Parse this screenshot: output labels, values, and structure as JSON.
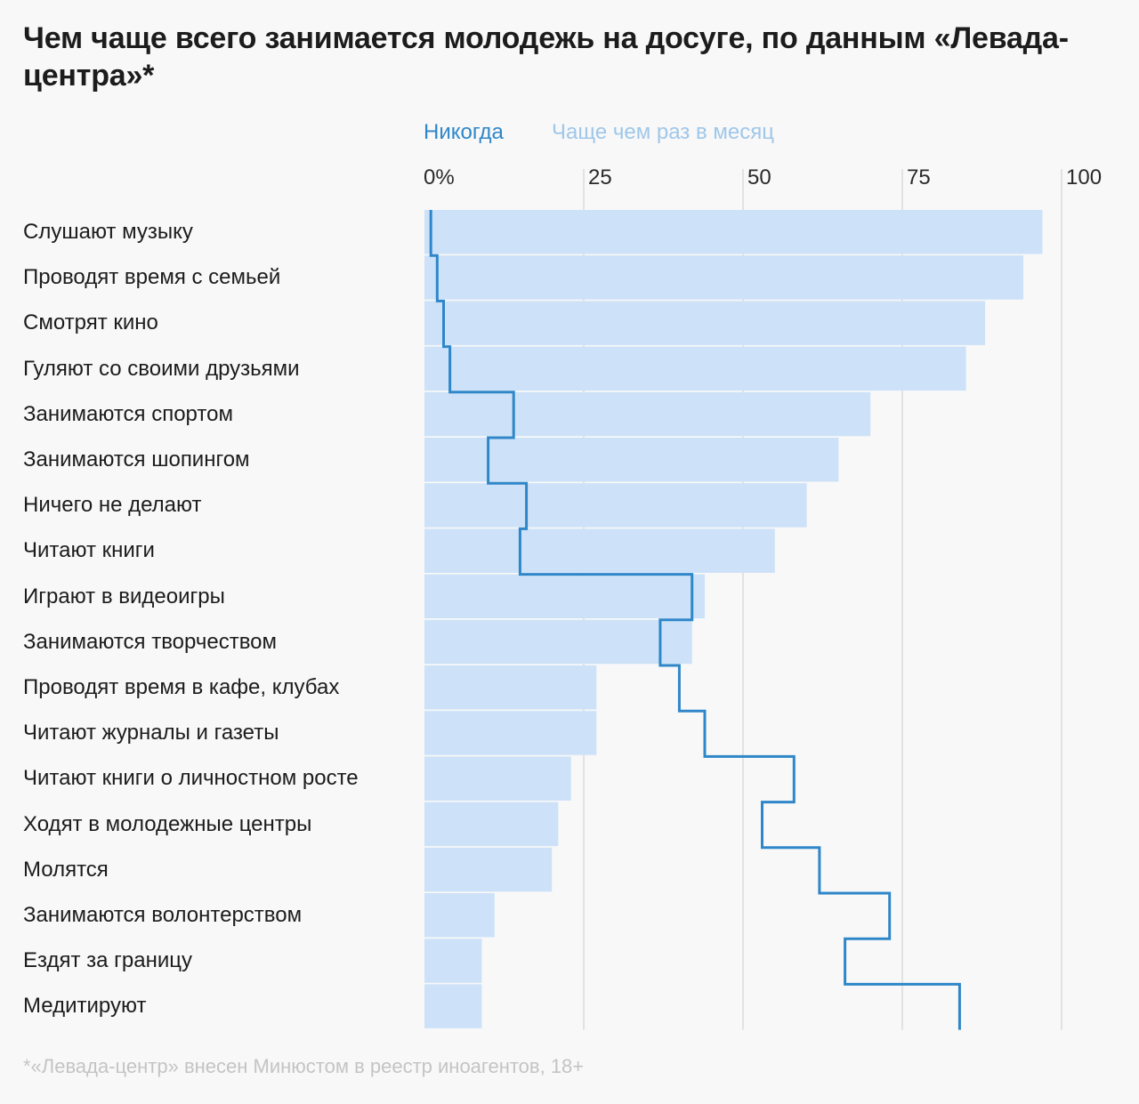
{
  "title": "Чем чаще всего занимается молодежь на досуге, по данным «Левада-центра»*",
  "footnote": "*«Левада-центр» внесен Минюстом в реестр иноагентов, 18+",
  "colors": {
    "bar": "#cde2f8",
    "step_line": "#2f87c9",
    "legend_never": "#2f87c9",
    "legend_monthly": "#9fc7ea",
    "grid": "#d3d3d3"
  },
  "chart_data": {
    "type": "bar",
    "orientation": "horizontal",
    "title": "Чем чаще всего занимается молодежь на досуге, по данным «Левада-центра»*",
    "xlim": [
      0,
      100
    ],
    "x_ticks": [
      "0%",
      "25",
      "50",
      "75",
      "100"
    ],
    "x_tick_values": [
      0,
      25,
      50,
      75,
      100
    ],
    "legend": [
      "Никогда",
      "Чаще чем раз в месяц"
    ],
    "categories": [
      "Слушают музыку",
      "Проводят время с семьей",
      "Смотрят кино",
      "Гуляют со своими друзьями",
      "Занимаются спортом",
      "Занимаются шопингом",
      "Ничего не делают",
      "Читают книги",
      "Играют в видеоигры",
      "Занимаются творчеством",
      "Проводят время в кафе, клубах",
      "Читают журналы и газеты",
      "Читают книги о личностном росте",
      "Ходят в молодежные центры",
      "Молятся",
      "Занимаются волонтерством",
      "Ездят за границу",
      "Медитируют"
    ],
    "series": [
      {
        "name": "Чаще чем раз в месяц",
        "style": "bar",
        "values": [
          97,
          94,
          88,
          85,
          70,
          65,
          60,
          55,
          44,
          42,
          27,
          27,
          23,
          21,
          20,
          11,
          9,
          9
        ]
      },
      {
        "name": "Никогда",
        "style": "step-line",
        "values": [
          1,
          2,
          3,
          4,
          14,
          10,
          16,
          15,
          42,
          37,
          40,
          44,
          58,
          53,
          62,
          73,
          66,
          84
        ]
      }
    ]
  }
}
